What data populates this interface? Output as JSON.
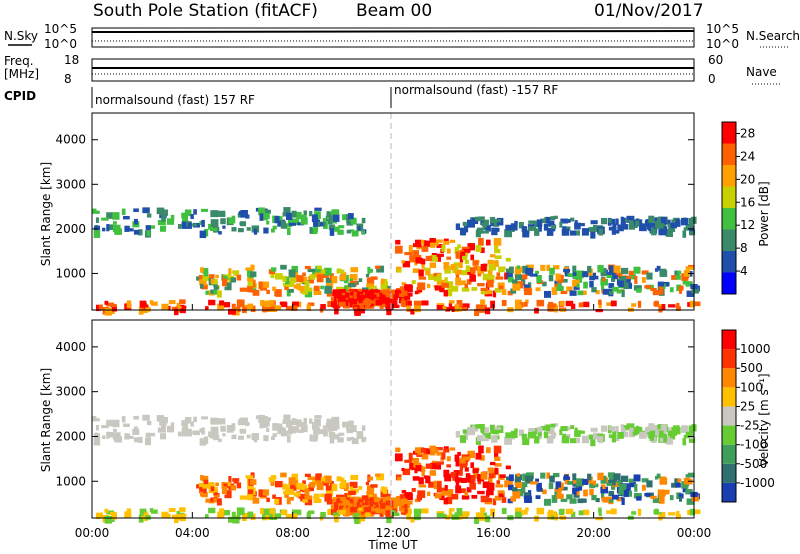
{
  "header": {
    "station": "South Pole Station (fitACF)",
    "beam": "Beam 00",
    "date": "01/Nov/2017"
  },
  "top_panels": {
    "nsky_label": "N.Sky",
    "nsky_ticks": [
      "10^5",
      "10^0"
    ],
    "nsearch_label": "N.Search",
    "nsearch_ticks": [
      "10^5",
      "10^0"
    ],
    "freq_label": "Freq.",
    "freq_unit": "[MHz]",
    "freq_ticks": [
      "18",
      "8"
    ],
    "nave_label": "Nave",
    "nave_ticks": [
      "60",
      "0"
    ],
    "cpid_label": "CPID",
    "cpid_segments": [
      {
        "label": "normalsound (fast) 157 RF",
        "start_hour": 0
      },
      {
        "label": "normalsound (fast) -157 RF",
        "start_hour": 12
      }
    ]
  },
  "chart_data": [
    {
      "type": "heatmap",
      "name": "power",
      "xlabel": "Time UT",
      "ylabel": "Slant Range [km]",
      "xlim": [
        0,
        24
      ],
      "ylim": [
        180,
        4600
      ],
      "yticks": [
        "1000",
        "2000",
        "3000",
        "4000"
      ],
      "colorbar": {
        "label": "Power [dB]",
        "ticks": [
          "4",
          "8",
          "12",
          "16",
          "20",
          "24",
          "28"
        ],
        "range": [
          0,
          30
        ],
        "colors": [
          "#0000ff",
          "#1f4faa",
          "#3a8a6a",
          "#40c040",
          "#c8d000",
          "#ffa000",
          "#ff6000",
          "#ff0000"
        ]
      }
    },
    {
      "type": "heatmap",
      "name": "velocity",
      "xlabel": "Time UT",
      "ylabel": "Slant Range [km]",
      "xlim": [
        0,
        24
      ],
      "ylim": [
        180,
        4600
      ],
      "yticks": [
        "1000",
        "2000",
        "3000",
        "4000"
      ],
      "colorbar": {
        "label": "Velocity [m s⁻¹]",
        "ticks": [
          "1000",
          "500",
          "100",
          "25",
          "-25",
          "-100",
          "-500",
          "-1000"
        ],
        "colors": [
          "#1a3fb0",
          "#2f6f6f",
          "#3f9e5a",
          "#66cc33",
          "#c8c8c0",
          "#ffc000",
          "#ff8800",
          "#ff3300",
          "#ff0000"
        ]
      }
    }
  ],
  "time_axis": {
    "label": "Time UT",
    "ticks": [
      "00:00",
      "04:00",
      "08:00",
      "12:00",
      "16:00",
      "20:00",
      "00:00"
    ]
  }
}
